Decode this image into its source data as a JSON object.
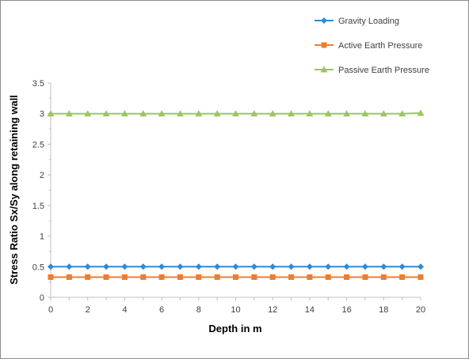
{
  "chart_data": {
    "type": "line",
    "title": "",
    "xlabel": "Depth in m",
    "ylabel": "Stress Ratio Sx/Sy along retaining wall",
    "x": [
      0,
      1,
      2,
      3,
      4,
      5,
      6,
      7,
      8,
      9,
      10,
      11,
      12,
      13,
      14,
      15,
      16,
      17,
      18,
      19,
      20
    ],
    "xlim": [
      0,
      20
    ],
    "ylim": [
      0,
      3.5
    ],
    "x_ticks": [
      "0",
      "2",
      "4",
      "6",
      "8",
      "10",
      "12",
      "14",
      "16",
      "18",
      "20"
    ],
    "y_ticks": [
      "0",
      "0.5",
      "1",
      "1.5",
      "2",
      "2.5",
      "3",
      "3.5"
    ],
    "grid": false,
    "legend_position": "top-right",
    "series": [
      {
        "name": "Gravity Loading",
        "color": "#2e8bd4",
        "marker": "diamond",
        "values": [
          0.5,
          0.5,
          0.5,
          0.5,
          0.5,
          0.5,
          0.5,
          0.5,
          0.5,
          0.5,
          0.5,
          0.5,
          0.5,
          0.5,
          0.5,
          0.5,
          0.5,
          0.5,
          0.5,
          0.5,
          0.5
        ]
      },
      {
        "name": "Active Earth Pressure",
        "color": "#ed7d31",
        "marker": "square",
        "values": [
          0.33,
          0.33,
          0.33,
          0.33,
          0.33,
          0.33,
          0.33,
          0.33,
          0.33,
          0.33,
          0.33,
          0.33,
          0.33,
          0.33,
          0.33,
          0.33,
          0.33,
          0.33,
          0.33,
          0.33,
          0.33
        ]
      },
      {
        "name": "Passive Earth Pressure",
        "color": "#9bc565",
        "marker": "triangle",
        "values": [
          3.0,
          3.0,
          3.0,
          3.0,
          3.0,
          3.0,
          3.0,
          3.0,
          3.0,
          3.0,
          3.0,
          3.0,
          3.0,
          3.0,
          3.0,
          3.0,
          3.0,
          3.0,
          3.0,
          3.0,
          3.01
        ]
      }
    ]
  }
}
